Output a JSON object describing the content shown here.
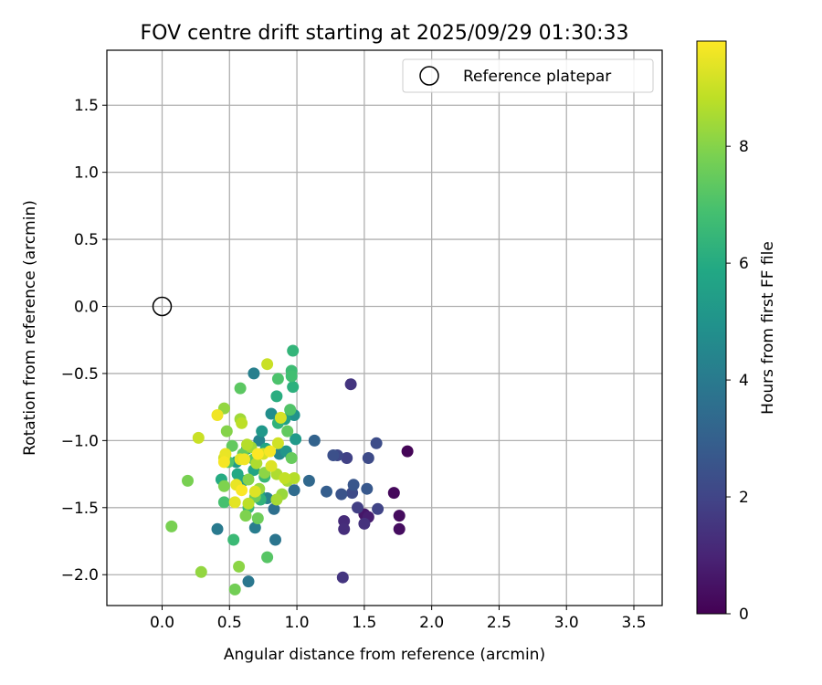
{
  "chart_data": {
    "type": "scatter",
    "title": "FOV centre drift starting at 2025/09/29 01:30:33",
    "xlabel": "Angular distance from reference (arcmin)",
    "ylabel": "Rotation from reference (arcmin)",
    "xlim": [
      -0.41,
      3.71
    ],
    "ylim": [
      -2.23,
      1.91
    ],
    "xticks": [
      0.0,
      0.5,
      1.0,
      1.5,
      2.0,
      2.5,
      3.0,
      3.5
    ],
    "yticks": [
      -2.0,
      -1.5,
      -1.0,
      -0.5,
      0.0,
      0.5,
      1.0,
      1.5
    ],
    "tick_format": "fixed1",
    "grid": true,
    "legend": {
      "label": "Reference platepar",
      "position": "top-right"
    },
    "reference_point": {
      "x": 0.0,
      "y": 0.0
    },
    "colorbar": {
      "label": "Hours from first FF file",
      "colormap": "viridis",
      "min": 0,
      "max": 9.8,
      "ticks": [
        0,
        2,
        4,
        6,
        8
      ]
    },
    "series": [
      {
        "name": "FOV centre drift",
        "points": [
          {
            "x": 1.82,
            "y": -1.08,
            "h": 0.1
          },
          {
            "x": 1.72,
            "y": -1.39,
            "h": 0.2
          },
          {
            "x": 1.76,
            "y": -1.56,
            "h": 0.3
          },
          {
            "x": 1.76,
            "y": -1.66,
            "h": 0.35
          },
          {
            "x": 1.5,
            "y": -1.55,
            "h": 0.6
          },
          {
            "x": 1.53,
            "y": -1.57,
            "h": 0.8
          },
          {
            "x": 1.35,
            "y": -1.6,
            "h": 1.2
          },
          {
            "x": 1.35,
            "y": -1.66,
            "h": 1.3
          },
          {
            "x": 1.5,
            "y": -1.62,
            "h": 1.4
          },
          {
            "x": 1.34,
            "y": -2.02,
            "h": 1.5
          },
          {
            "x": 1.4,
            "y": -0.58,
            "h": 1.5
          },
          {
            "x": 1.45,
            "y": -1.5,
            "h": 1.8
          },
          {
            "x": 1.37,
            "y": -1.13,
            "h": 1.9
          },
          {
            "x": 1.6,
            "y": -1.51,
            "h": 2.0
          },
          {
            "x": 1.3,
            "y": -1.11,
            "h": 2.1
          },
          {
            "x": 1.41,
            "y": -1.39,
            "h": 2.2
          },
          {
            "x": 1.53,
            "y": -1.13,
            "h": 2.2
          },
          {
            "x": 1.59,
            "y": -1.02,
            "h": 2.3
          },
          {
            "x": 1.27,
            "y": -1.11,
            "h": 2.4
          },
          {
            "x": 1.33,
            "y": -1.4,
            "h": 2.5
          },
          {
            "x": 1.42,
            "y": -1.33,
            "h": 2.6
          },
          {
            "x": 1.52,
            "y": -1.36,
            "h": 2.7
          },
          {
            "x": 1.22,
            "y": -1.38,
            "h": 2.9
          },
          {
            "x": 1.13,
            "y": -1.0,
            "h": 3.1
          },
          {
            "x": 1.09,
            "y": -1.3,
            "h": 3.3
          },
          {
            "x": 0.98,
            "y": -1.37,
            "h": 3.4
          },
          {
            "x": 0.83,
            "y": -1.51,
            "h": 3.6
          },
          {
            "x": 0.84,
            "y": -1.74,
            "h": 3.8
          },
          {
            "x": 0.64,
            "y": -2.05,
            "h": 3.9
          },
          {
            "x": 0.41,
            "y": -1.66,
            "h": 4.0
          },
          {
            "x": 0.69,
            "y": -1.65,
            "h": 4.1
          },
          {
            "x": 0.68,
            "y": -0.5,
            "h": 4.2
          },
          {
            "x": 0.78,
            "y": -1.43,
            "h": 4.3
          },
          {
            "x": 0.72,
            "y": -1.0,
            "h": 4.4
          },
          {
            "x": 0.87,
            "y": -1.1,
            "h": 4.5
          },
          {
            "x": 0.63,
            "y": -1.06,
            "h": 4.6
          },
          {
            "x": 0.81,
            "y": -0.8,
            "h": 4.8
          },
          {
            "x": 0.98,
            "y": -0.81,
            "h": 5.0
          },
          {
            "x": 0.92,
            "y": -1.08,
            "h": 5.1
          },
          {
            "x": 0.74,
            "y": -0.93,
            "h": 5.2
          },
          {
            "x": 0.99,
            "y": -0.99,
            "h": 5.3
          },
          {
            "x": 0.55,
            "y": -1.16,
            "h": 5.4
          },
          {
            "x": 0.6,
            "y": -1.3,
            "h": 5.5
          },
          {
            "x": 0.72,
            "y": -1.4,
            "h": 5.5
          },
          {
            "x": 0.91,
            "y": -0.84,
            "h": 5.6
          },
          {
            "x": 0.68,
            "y": -1.22,
            "h": 5.7
          },
          {
            "x": 0.77,
            "y": -1.06,
            "h": 5.8
          },
          {
            "x": 0.56,
            "y": -1.25,
            "h": 5.9
          },
          {
            "x": 0.44,
            "y": -1.29,
            "h": 6.0
          },
          {
            "x": 0.85,
            "y": -0.67,
            "h": 6.1
          },
          {
            "x": 0.97,
            "y": -0.6,
            "h": 6.2
          },
          {
            "x": 0.86,
            "y": -0.87,
            "h": 6.3
          },
          {
            "x": 0.73,
            "y": -1.44,
            "h": 6.3
          },
          {
            "x": 0.97,
            "y": -0.33,
            "h": 6.4
          },
          {
            "x": 0.76,
            "y": -1.27,
            "h": 6.5
          },
          {
            "x": 0.53,
            "y": -1.74,
            "h": 6.6
          },
          {
            "x": 0.64,
            "y": -1.5,
            "h": 6.6
          },
          {
            "x": 0.96,
            "y": -0.48,
            "h": 6.7
          },
          {
            "x": 0.96,
            "y": -0.52,
            "h": 6.8
          },
          {
            "x": 0.46,
            "y": -1.46,
            "h": 6.9
          },
          {
            "x": 0.49,
            "y": -1.16,
            "h": 7.0
          },
          {
            "x": 0.86,
            "y": -0.54,
            "h": 7.0
          },
          {
            "x": 0.95,
            "y": -0.77,
            "h": 7.1
          },
          {
            "x": 0.78,
            "y": -1.87,
            "h": 7.2
          },
          {
            "x": 0.58,
            "y": -0.61,
            "h": 7.3
          },
          {
            "x": 0.68,
            "y": -1.14,
            "h": 7.3
          },
          {
            "x": 0.93,
            "y": -0.93,
            "h": 7.4
          },
          {
            "x": 0.52,
            "y": -1.04,
            "h": 7.4
          },
          {
            "x": 0.96,
            "y": -1.13,
            "h": 7.5
          },
          {
            "x": 0.6,
            "y": -1.1,
            "h": 7.5
          },
          {
            "x": 0.71,
            "y": -1.58,
            "h": 7.6
          },
          {
            "x": 0.69,
            "y": -1.42,
            "h": 7.6
          },
          {
            "x": 0.54,
            "y": -2.11,
            "h": 7.7
          },
          {
            "x": 0.07,
            "y": -1.64,
            "h": 7.8
          },
          {
            "x": 0.19,
            "y": -1.3,
            "h": 7.8
          },
          {
            "x": 0.46,
            "y": -1.34,
            "h": 7.9
          },
          {
            "x": 0.62,
            "y": -1.56,
            "h": 7.9
          },
          {
            "x": 0.48,
            "y": -0.93,
            "h": 8.0
          },
          {
            "x": 0.64,
            "y": -1.29,
            "h": 8.0
          },
          {
            "x": 0.76,
            "y": -1.24,
            "h": 8.1
          },
          {
            "x": 0.57,
            "y": -1.94,
            "h": 8.1
          },
          {
            "x": 0.29,
            "y": -1.98,
            "h": 8.2
          },
          {
            "x": 0.46,
            "y": -0.76,
            "h": 8.2
          },
          {
            "x": 0.89,
            "y": -1.4,
            "h": 8.3
          },
          {
            "x": 0.72,
            "y": -1.36,
            "h": 8.3
          },
          {
            "x": 0.66,
            "y": -1.05,
            "h": 8.4
          },
          {
            "x": 0.58,
            "y": -0.84,
            "h": 8.4
          },
          {
            "x": 0.85,
            "y": -1.44,
            "h": 8.5
          },
          {
            "x": 0.93,
            "y": -1.3,
            "h": 8.5
          },
          {
            "x": 0.7,
            "y": -1.17,
            "h": 8.6
          },
          {
            "x": 0.85,
            "y": -1.25,
            "h": 8.6
          },
          {
            "x": 0.98,
            "y": -1.28,
            "h": 8.7
          },
          {
            "x": 0.63,
            "y": -1.03,
            "h": 8.7
          },
          {
            "x": 0.59,
            "y": -0.87,
            "h": 8.8
          },
          {
            "x": 0.64,
            "y": -1.47,
            "h": 8.8
          },
          {
            "x": 0.91,
            "y": -1.28,
            "h": 8.9
          },
          {
            "x": 0.78,
            "y": -0.43,
            "h": 9.0
          },
          {
            "x": 0.27,
            "y": -0.98,
            "h": 9.0
          },
          {
            "x": 0.86,
            "y": -1.02,
            "h": 9.1
          },
          {
            "x": 0.46,
            "y": -1.13,
            "h": 9.1
          },
          {
            "x": 0.88,
            "y": -0.83,
            "h": 9.2
          },
          {
            "x": 0.75,
            "y": -1.1,
            "h": 9.2
          },
          {
            "x": 0.81,
            "y": -1.19,
            "h": 9.3
          },
          {
            "x": 0.69,
            "y": -1.38,
            "h": 9.3
          },
          {
            "x": 0.58,
            "y": -1.14,
            "h": 9.4
          },
          {
            "x": 0.54,
            "y": -1.46,
            "h": 9.4
          },
          {
            "x": 0.47,
            "y": -1.1,
            "h": 9.5
          },
          {
            "x": 0.55,
            "y": -1.33,
            "h": 9.5
          },
          {
            "x": 0.41,
            "y": -0.81,
            "h": 9.6
          },
          {
            "x": 0.61,
            "y": -1.14,
            "h": 9.6
          },
          {
            "x": 0.46,
            "y": -1.16,
            "h": 9.7
          },
          {
            "x": 0.8,
            "y": -1.08,
            "h": 9.7
          },
          {
            "x": 0.59,
            "y": -1.37,
            "h": 9.75
          },
          {
            "x": 0.71,
            "y": -1.1,
            "h": 9.8
          }
        ]
      }
    ]
  }
}
